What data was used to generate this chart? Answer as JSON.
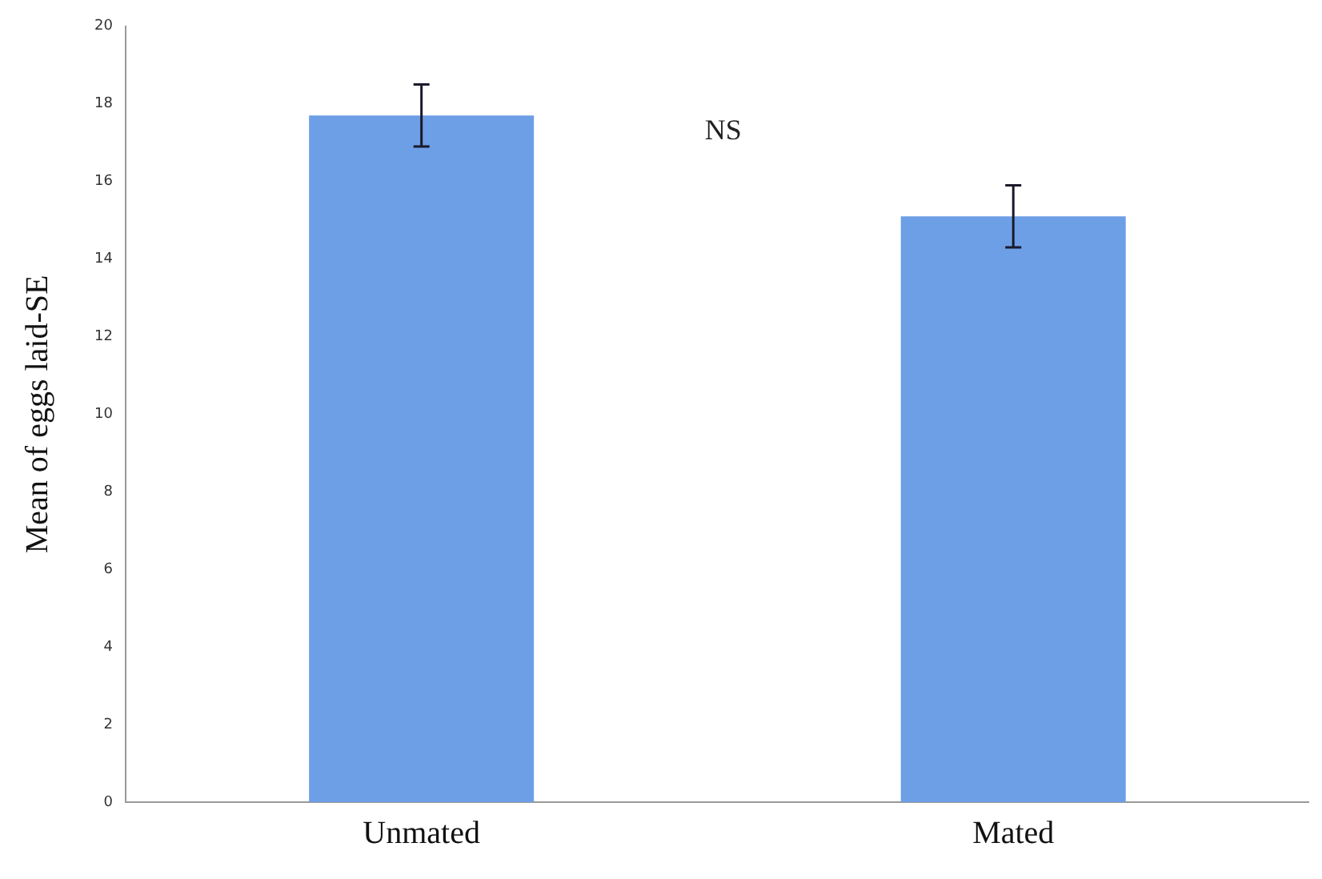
{
  "chart_data": {
    "type": "bar",
    "ylabel": "Mean of eggs laid-SE",
    "categories": [
      "Unmated",
      "Mated"
    ],
    "values": [
      17.7,
      15.1
    ],
    "errors": [
      0.8,
      0.8
    ],
    "color": "#6d9fe6",
    "ylim": [
      0,
      20
    ],
    "yticks": [
      0,
      2,
      4,
      6,
      8,
      10,
      12,
      14,
      16,
      18,
      20
    ],
    "grid": false,
    "legend": false,
    "annotations": [
      "NS"
    ]
  }
}
